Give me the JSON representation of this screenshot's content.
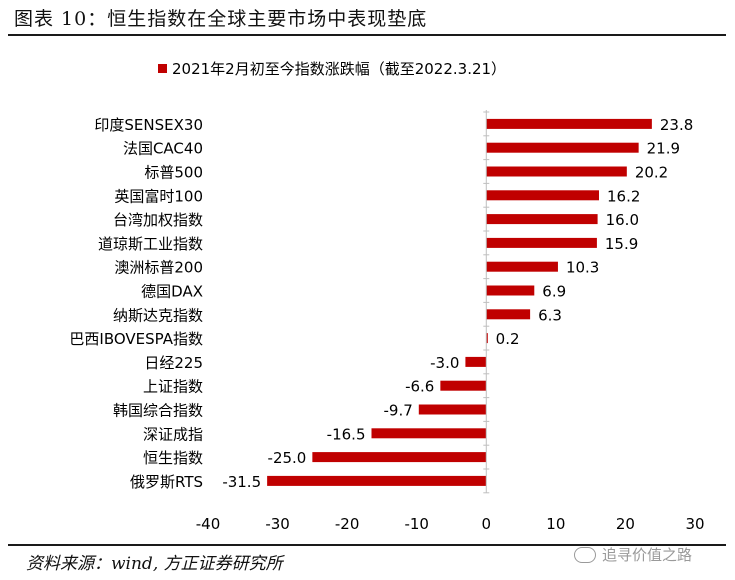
{
  "header": {
    "title": "图表 10：恒生指数在全球主要市场中表现垫底"
  },
  "chart_data": {
    "type": "bar",
    "orientation": "horizontal",
    "legend": {
      "label": "2021年2月初至今指数涨跌幅（截至2022.3.21）",
      "placement": "top-center"
    },
    "categories": [
      "印度SENSEX30",
      "法国CAC40",
      "标普500",
      "英国富时100",
      "台湾加权指数",
      "道琼斯工业指数",
      "澳洲标普200",
      "德国DAX",
      "纳斯达克指数",
      "巴西IBOVESPA指数",
      "日经225",
      "上证指数",
      "韩国综合指数",
      "深证成指",
      "恒生指数",
      "俄罗斯RTS"
    ],
    "values": [
      23.8,
      21.9,
      20.2,
      16.2,
      16.0,
      15.9,
      10.3,
      6.9,
      6.3,
      0.2,
      -3.0,
      -6.6,
      -9.7,
      -16.5,
      -25.0,
      -31.5
    ],
    "value_labels": [
      "23.8",
      "21.9",
      "20.2",
      "16.2",
      "16.0",
      "15.9",
      "10.3",
      "6.9",
      "6.3",
      "0.2",
      "-3.0",
      "-6.6",
      "-9.7",
      "-16.5",
      "-25.0",
      "-31.5"
    ],
    "xlim": [
      -40,
      30
    ],
    "xticks": [
      -40,
      -30,
      -20,
      -10,
      0,
      10,
      20,
      30
    ],
    "grid": false,
    "bar_color": "#c00000"
  },
  "footer": {
    "source": "资料来源：wind, 方正证券研究所",
    "watermark": "追寻价值之路"
  }
}
